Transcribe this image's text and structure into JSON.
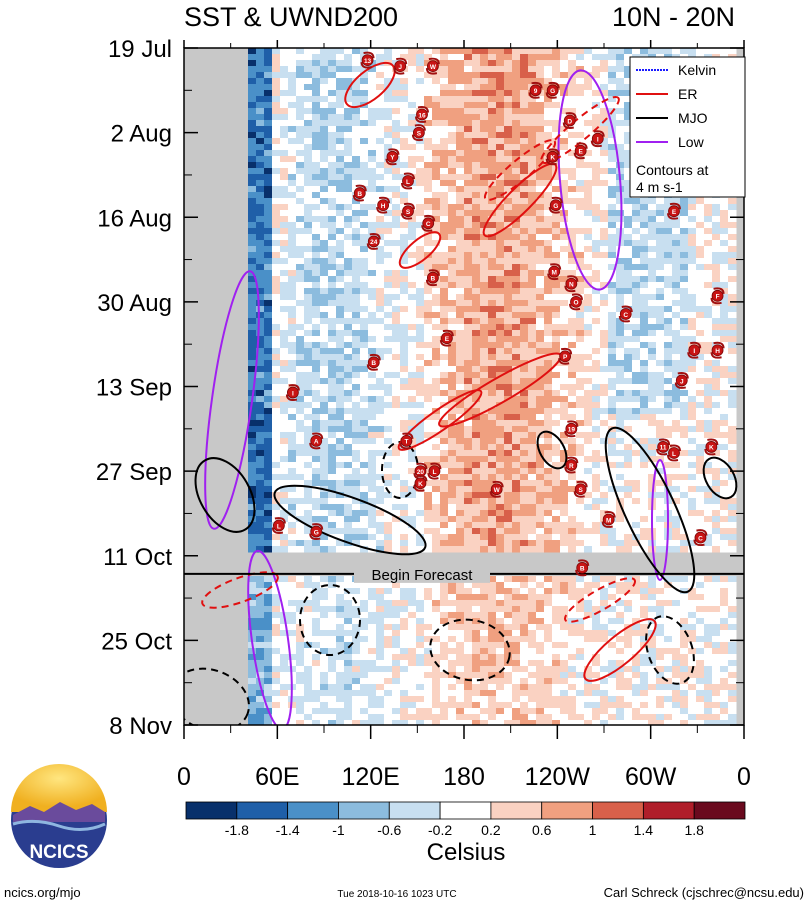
{
  "header": {
    "title_left": "SST & UWND200",
    "title_right": "10N - 20N"
  },
  "chart_data": {
    "type": "heatmap",
    "title": "SST & UWND200",
    "subtitle": "10N - 20N",
    "x_ticks": [
      "0",
      "60E",
      "120E",
      "180",
      "120W",
      "60W",
      "0"
    ],
    "x_tick_values": [
      0,
      60,
      120,
      180,
      240,
      300,
      360
    ],
    "y_ticks": [
      "19 Jul",
      "2 Aug",
      "16 Aug",
      "30 Aug",
      "13 Sep",
      "27 Sep",
      "11 Oct",
      "25 Oct",
      "8 Nov"
    ],
    "y_tick_days": [
      0,
      14,
      28,
      42,
      56,
      70,
      84,
      98,
      112
    ],
    "forecast_label": "Begin Forecast",
    "forecast_day": 87,
    "colorbar": {
      "label": "Celsius",
      "tick_labels": [
        "-1.8",
        "-1.4",
        "-1",
        "-0.6",
        "-0.2",
        "0.2",
        "0.6",
        "1",
        "1.4",
        "1.8"
      ],
      "colors": [
        "#08306b",
        "#1f5fa8",
        "#4a90c8",
        "#8cbcde",
        "#c8dff0",
        "#ffffff",
        "#fad2c2",
        "#f0a080",
        "#d8604a",
        "#b01e2a",
        "#6a0a1e"
      ]
    },
    "legend": {
      "position": "top-right",
      "entries": [
        {
          "name": "Kelvin",
          "color": "#1a1aff"
        },
        {
          "name": "ER",
          "color": "#e01010"
        },
        {
          "name": "MJO",
          "color": "#000000"
        },
        {
          "name": "Low",
          "color": "#a020f0"
        }
      ],
      "note_line1": "Contours at",
      "note_line2": "4 m s-1"
    },
    "storms": [
      {
        "label": "13",
        "lon": 118,
        "day": 2
      },
      {
        "label": "J",
        "lon": 139,
        "day": 3
      },
      {
        "label": "W",
        "lon": 160,
        "day": 3
      },
      {
        "label": "9",
        "lon": 226,
        "day": 7
      },
      {
        "label": "G",
        "lon": 237,
        "day": 7
      },
      {
        "label": "16",
        "lon": 153,
        "day": 11
      },
      {
        "label": "S",
        "lon": 151,
        "day": 14
      },
      {
        "label": "D",
        "lon": 248,
        "day": 12
      },
      {
        "label": "Y",
        "lon": 134,
        "day": 18
      },
      {
        "label": "K",
        "lon": 237,
        "day": 18
      },
      {
        "label": "E",
        "lon": 255,
        "day": 17
      },
      {
        "label": "I",
        "lon": 266,
        "day": 15
      },
      {
        "label": "L",
        "lon": 144,
        "day": 22
      },
      {
        "label": "B",
        "lon": 113,
        "day": 24
      },
      {
        "label": "H",
        "lon": 128,
        "day": 26
      },
      {
        "label": "S",
        "lon": 144,
        "day": 27
      },
      {
        "label": "C",
        "lon": 157,
        "day": 29
      },
      {
        "label": "G",
        "lon": 239,
        "day": 26
      },
      {
        "label": "E",
        "lon": 315,
        "day": 27
      },
      {
        "label": "24",
        "lon": 122,
        "day": 32
      },
      {
        "label": "B",
        "lon": 160,
        "day": 38
      },
      {
        "label": "M",
        "lon": 238,
        "day": 37
      },
      {
        "label": "N",
        "lon": 249,
        "day": 39
      },
      {
        "label": "O",
        "lon": 252,
        "day": 42
      },
      {
        "label": "C",
        "lon": 284,
        "day": 44
      },
      {
        "label": "F",
        "lon": 343,
        "day": 41
      },
      {
        "label": "E",
        "lon": 169,
        "day": 48
      },
      {
        "label": "P",
        "lon": 245,
        "day": 51
      },
      {
        "label": "I",
        "lon": 328,
        "day": 50
      },
      {
        "label": "H",
        "lon": 343,
        "day": 50
      },
      {
        "label": "B",
        "lon": 122,
        "day": 52
      },
      {
        "label": "J",
        "lon": 320,
        "day": 55
      },
      {
        "label": "I",
        "lon": 70,
        "day": 57
      },
      {
        "label": "19",
        "lon": 249,
        "day": 63
      },
      {
        "label": "T",
        "lon": 143,
        "day": 65
      },
      {
        "label": "A",
        "lon": 85,
        "day": 65
      },
      {
        "label": "11",
        "lon": 308,
        "day": 66
      },
      {
        "label": "L",
        "lon": 315,
        "day": 67
      },
      {
        "label": "K",
        "lon": 339,
        "day": 66
      },
      {
        "label": "20",
        "lon": 152,
        "day": 70
      },
      {
        "label": "L",
        "lon": 161,
        "day": 70
      },
      {
        "label": "R",
        "lon": 249,
        "day": 69
      },
      {
        "label": "K",
        "lon": 152,
        "day": 72
      },
      {
        "label": "W",
        "lon": 201,
        "day": 73
      },
      {
        "label": "S",
        "lon": 255,
        "day": 73
      },
      {
        "label": "L",
        "lon": 61,
        "day": 79
      },
      {
        "label": "G",
        "lon": 85,
        "day": 80
      },
      {
        "label": "M",
        "lon": 273,
        "day": 78
      },
      {
        "label": "C",
        "lon": 332,
        "day": 81
      },
      {
        "label": "B",
        "lon": 256,
        "day": 86
      }
    ]
  },
  "footer": {
    "logo_text": "NCICS",
    "site": "ncics.org/mjo",
    "timestamp": "Tue 2018-10-16 1023 UTC",
    "author": "Carl Schreck (cjschrec@ncsu.edu)"
  }
}
